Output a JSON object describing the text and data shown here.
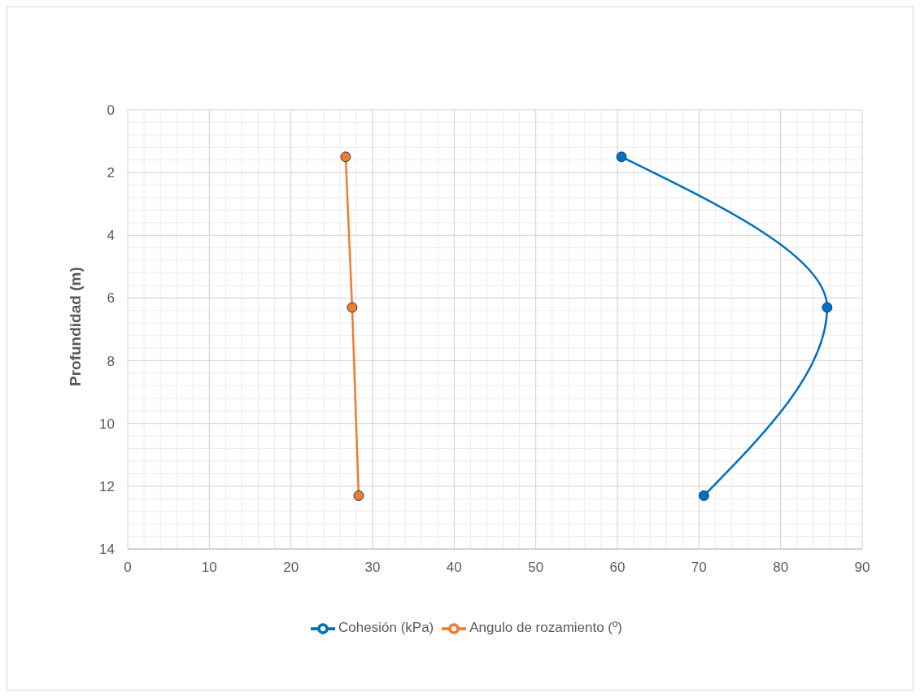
{
  "chart_data": {
    "type": "line",
    "ylabel": "Profundidad (m)",
    "series": [
      {
        "name": "Cohesión (kPa)",
        "color": "#0070c0",
        "x": [
          60.5,
          85.7,
          70.6
        ],
        "values": [
          1.5,
          6.3,
          12.3
        ]
      },
      {
        "name": "Angulo de rozamiento (º)",
        "color": "#ed7d31",
        "x": [
          26.7,
          27.5,
          28.3
        ],
        "values": [
          1.5,
          6.3,
          12.3
        ]
      }
    ],
    "xlim": [
      0,
      90
    ],
    "xticks": [
      0,
      10,
      20,
      30,
      40,
      50,
      60,
      70,
      80,
      90
    ],
    "ylim": [
      14,
      0
    ],
    "yticks": [
      0,
      2,
      4,
      6,
      8,
      10,
      12,
      14
    ],
    "grid": true,
    "legend": "bottom",
    "marker": "circle",
    "line_style": "solid"
  }
}
